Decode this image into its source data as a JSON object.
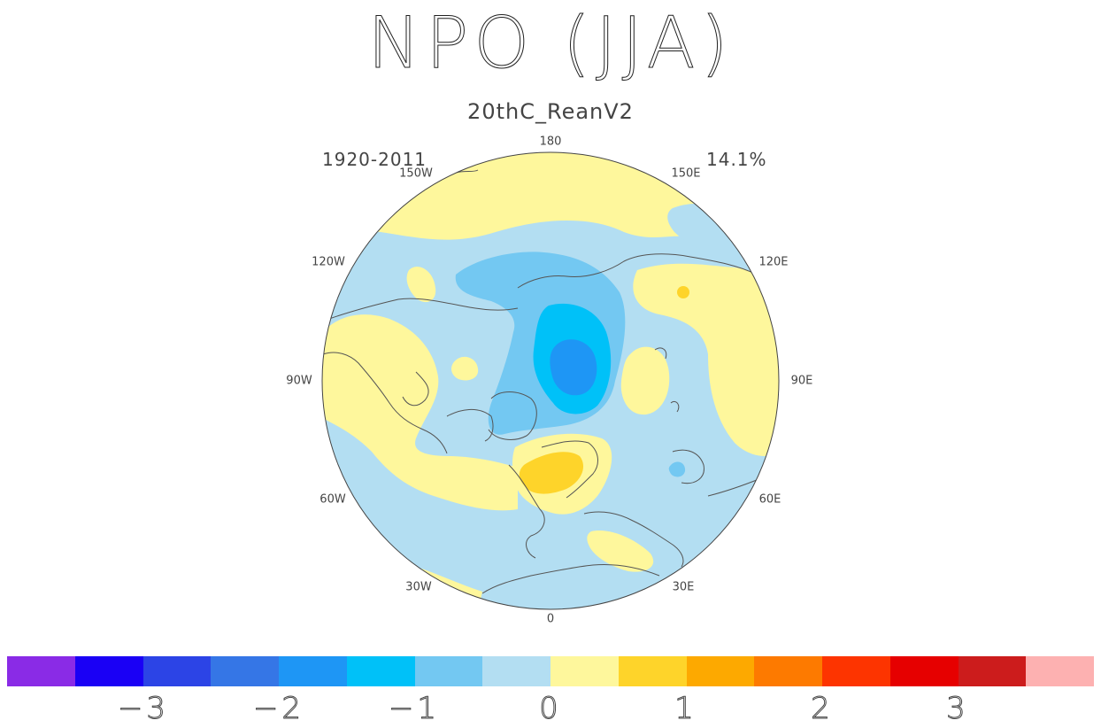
{
  "title": "NPO (JJA)",
  "subtitle": "20thC_ReanV2",
  "period": "1920-2011",
  "variance": "14.1%",
  "map": {
    "projection": "north polar stereographic",
    "longitude_labels": [
      "180",
      "150E",
      "120E",
      "90E",
      "60E",
      "30E",
      "0",
      "30W",
      "60W",
      "90W",
      "120W",
      "150W"
    ]
  },
  "colorbar": {
    "colors": [
      "#8a2be6",
      "#1a00f5",
      "#2c44e6",
      "#3576e6",
      "#1e96f5",
      "#00c1f8",
      "#73c8f2",
      "#b3def2",
      "#fef79c",
      "#fed42a",
      "#fda900",
      "#fd7a00",
      "#fd3400",
      "#e60000",
      "#cc1c1c",
      "#fdb1b1"
    ],
    "tick_labels": [
      "−3",
      "−2",
      "−1",
      "0",
      "1",
      "2",
      "3"
    ]
  }
}
